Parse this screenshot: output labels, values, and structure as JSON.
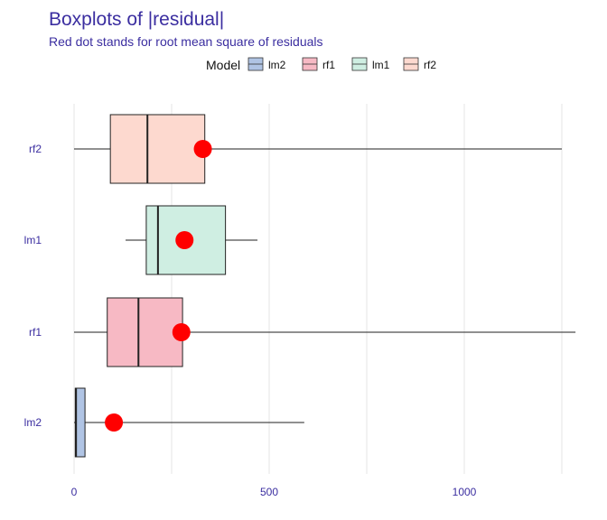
{
  "chart_data": {
    "type": "boxplot",
    "title": "Boxplots of |residual|",
    "subtitle": "Red dot stands for root mean square of residuals",
    "legend": {
      "title": "Model",
      "placement": "top",
      "entries": [
        {
          "name": "lm2",
          "color": "#b0c4e4"
        },
        {
          "name": "rf1",
          "color": "#f7b9c4"
        },
        {
          "name": "lm1",
          "color": "#cfeee2"
        },
        {
          "name": "rf2",
          "color": "#fdd9cf"
        }
      ]
    },
    "xlim": [
      -10,
      1280
    ],
    "x_ticks": [
      0,
      500,
      1000
    ],
    "grid": true,
    "categories": [
      "rf2",
      "lm1",
      "rf1",
      "lm2"
    ],
    "boxes": [
      {
        "name": "rf2",
        "color": "#fdd9cf",
        "whisker_low": 0,
        "q1": 93,
        "median": 188,
        "q3": 335,
        "whisker_high": 1250,
        "rms": 330
      },
      {
        "name": "lm1",
        "color": "#cfeee2",
        "whisker_low": 132,
        "q1": 185,
        "median": 215,
        "q3": 388,
        "whisker_high": 470,
        "rms": 283
      },
      {
        "name": "rf1",
        "color": "#f7b9c4",
        "whisker_low": 0,
        "q1": 85,
        "median": 165,
        "q3": 278,
        "whisker_high": 1285,
        "rms": 275
      },
      {
        "name": "lm2",
        "color": "#b0c4e4",
        "whisker_low": 0,
        "q1": 3,
        "median": 5,
        "q3": 28,
        "whisker_high": 590,
        "rms": 102
      }
    ]
  }
}
